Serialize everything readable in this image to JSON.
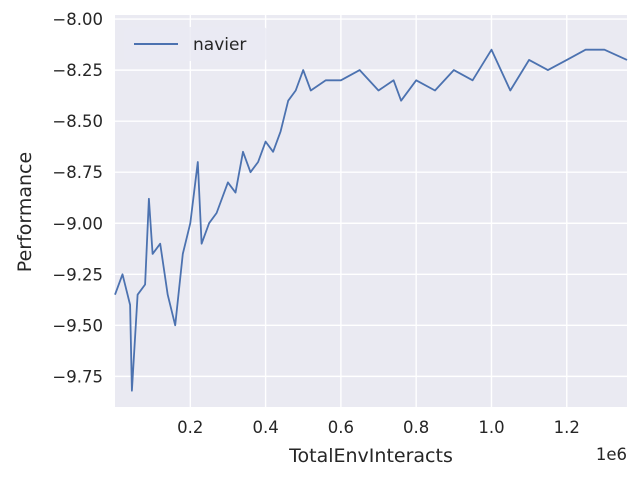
{
  "chart_data": {
    "type": "line",
    "xlabel": "TotalEnvInteracts",
    "ylabel": "Performance",
    "x_offset_label": "1e6",
    "x_scale": 1000000,
    "xlim": [
      0,
      1360000
    ],
    "ylim": [
      -9.9,
      -7.98
    ],
    "x_ticks": [
      200000,
      400000,
      600000,
      800000,
      1000000,
      1200000
    ],
    "x_tick_labels": [
      "0.2",
      "0.4",
      "0.6",
      "0.8",
      "1.0",
      "1.2"
    ],
    "y_ticks": [
      -8.0,
      -8.25,
      -8.5,
      -8.75,
      -9.0,
      -9.25,
      -9.5,
      -9.75
    ],
    "y_tick_labels": [
      "−8.00",
      "−8.25",
      "−8.50",
      "−8.75",
      "−9.00",
      "−9.25",
      "−9.50",
      "−9.75"
    ],
    "grid": true,
    "legend_position": "top-left",
    "series": [
      {
        "name": "navier",
        "color": "#4c72b0",
        "x": [
          0,
          20000,
          40000,
          45000,
          60000,
          80000,
          90000,
          100000,
          120000,
          140000,
          160000,
          180000,
          200000,
          220000,
          230000,
          250000,
          270000,
          300000,
          320000,
          340000,
          360000,
          380000,
          400000,
          420000,
          440000,
          460000,
          480000,
          500000,
          520000,
          560000,
          600000,
          650000,
          700000,
          740000,
          760000,
          800000,
          850000,
          900000,
          950000,
          1000000,
          1050000,
          1100000,
          1150000,
          1200000,
          1250000,
          1300000,
          1360000
        ],
        "y": [
          -9.35,
          -9.25,
          -9.4,
          -9.82,
          -9.35,
          -9.3,
          -8.88,
          -9.15,
          -9.1,
          -9.35,
          -9.5,
          -9.15,
          -9.0,
          -8.7,
          -9.1,
          -9.0,
          -8.95,
          -8.8,
          -8.85,
          -8.65,
          -8.75,
          -8.7,
          -8.6,
          -8.65,
          -8.55,
          -8.4,
          -8.35,
          -8.25,
          -8.35,
          -8.3,
          -8.3,
          -8.25,
          -8.35,
          -8.3,
          -8.4,
          -8.3,
          -8.35,
          -8.25,
          -8.3,
          -8.15,
          -8.35,
          -8.2,
          -8.25,
          -8.2,
          -8.15,
          -8.15,
          -8.2
        ]
      }
    ]
  }
}
